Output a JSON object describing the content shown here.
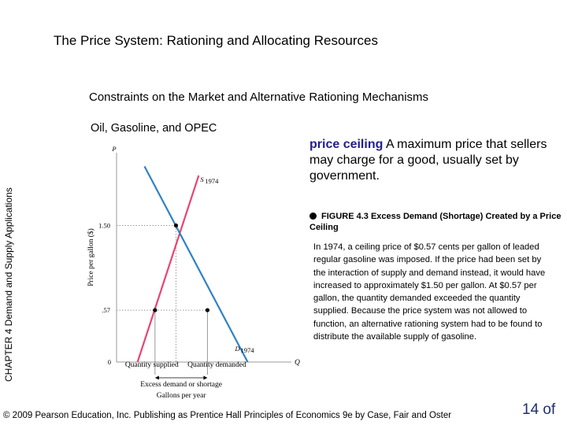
{
  "slide_title": "The Price System:  Rationing and Allocating Resources",
  "subtitle": "Constraints on the Market and Alternative Rationing Mechanisms",
  "section_title": "Oil, Gasoline, and OPEC",
  "sidebar_text": "CHAPTER 4  Demand and Supply Applications",
  "definition": {
    "term": "price ceiling",
    "text": "  A maximum price that sellers may charge for a good, usually set by government."
  },
  "figure_caption": "FIGURE 4.3  Excess Demand (Shortage) Created by a Price Ceiling",
  "explanation": "In 1974, a ceiling price of $0.57 cents per gallon of leaded regular gasoline was imposed. If the price had been set by the interaction of supply and demand instead, it would have increased to approximately $1.50 per gallon. At $0.57 per gallon, the quantity demanded exceeded the quantity supplied. Because the price system was not allowed to function, an alternative rationing system had to be found to distribute the available supply of gasoline.",
  "footer": "© 2009 Pearson Education, Inc. Publishing as Prentice Hall  Principles of Economics 9e by Case, Fair and Oster",
  "page_number": "14 of",
  "colors": {
    "supply": "#e8456f",
    "demand": "#2f82c4",
    "grid": "#999999",
    "definition_term": "#22218a",
    "page_number": "#1f2f6e"
  },
  "chart_data": {
    "type": "line",
    "xlabel": "Gallons per year",
    "ylabel": "Price per gallon ($)",
    "y_axis_letter": "P",
    "x_axis_letter": "Q",
    "origin_label": "0",
    "yticks": [
      0.57,
      1.5
    ],
    "ytick_labels": [
      ".57",
      "1.50"
    ],
    "ylim": [
      0,
      2.3
    ],
    "xlim": [
      0,
      10
    ],
    "series": [
      {
        "name": "S",
        "label_sub": "1974",
        "x": [
          1.2,
          4.7
        ],
        "y": [
          0.0,
          2.05
        ]
      },
      {
        "name": "D",
        "label_sub": "1974",
        "x": [
          1.6,
          7.5
        ],
        "y": [
          2.15,
          0.0
        ]
      }
    ],
    "equilibrium": {
      "x": 3.4,
      "y": 1.5
    },
    "ceiling_points": [
      {
        "label": "Quantity supplied",
        "x": 2.2,
        "y": 0.57
      },
      {
        "label": "Quantity demanded",
        "x": 5.2,
        "y": 0.57
      }
    ],
    "annotation": "Excess demand or shortage"
  }
}
